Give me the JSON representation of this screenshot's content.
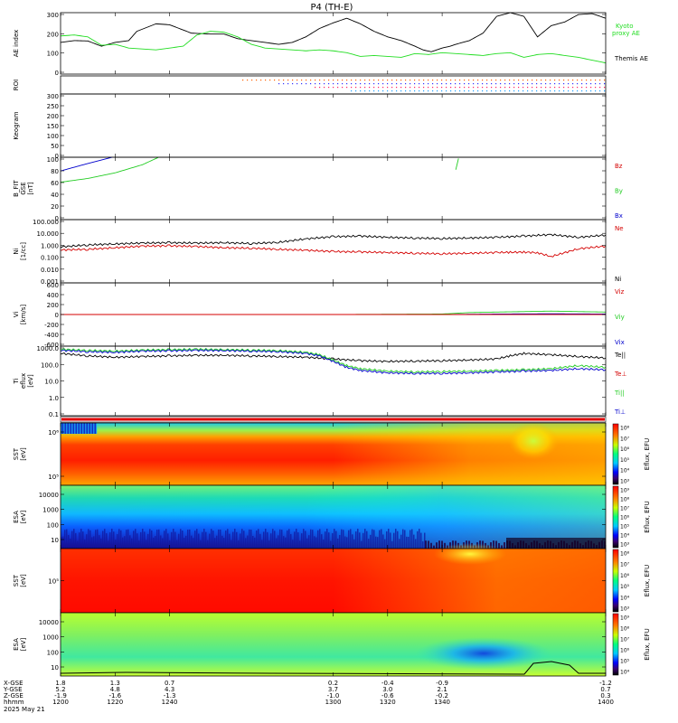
{
  "title": "P4 (TH-E)",
  "colors": {
    "black": "#000000",
    "red": "#d40000",
    "green": "#22cc22",
    "blue": "#0000cc",
    "kyoto": "#22dd22"
  },
  "chart_data": [
    {
      "name": "ae-index-panel",
      "type": "line",
      "ylabel": "AE index",
      "ylim": [
        -30,
        300
      ],
      "yticks": [
        "300",
        "200",
        "100",
        "0"
      ],
      "legend": [
        {
          "text": "Kyoto",
          "color": "#22dd22"
        },
        {
          "text": "proxy AE",
          "color": "#22dd22"
        },
        {
          "text": "Themis AE",
          "color": "#000000"
        }
      ],
      "series": [
        {
          "name": "Themis AE",
          "color": "#000000",
          "x": [
            1200,
            1205,
            1210,
            1215,
            1220,
            1225,
            1228,
            1235,
            1240,
            1248,
            1255,
            1260,
            1265,
            1270,
            1275,
            1280,
            1285,
            1290,
            1295,
            1300,
            1305,
            1310,
            1315,
            1320,
            1325,
            1330,
            1333,
            1336,
            1338,
            1340,
            1343,
            1345,
            1350,
            1355,
            1360,
            1365,
            1370,
            1375,
            1380,
            1385,
            1390,
            1395,
            1400
          ],
          "y": [
            140,
            150,
            148,
            120,
            140,
            150,
            200,
            240,
            235,
            190,
            185,
            185,
            160,
            150,
            140,
            130,
            140,
            170,
            215,
            245,
            270,
            240,
            200,
            170,
            150,
            120,
            100,
            90,
            100,
            110,
            120,
            130,
            150,
            190,
            280,
            300,
            280,
            170,
            230,
            250,
            290,
            295,
            270
          ]
        },
        {
          "name": "Kyoto proxy AE",
          "color": "#22dd22",
          "x": [
            1200,
            1205,
            1210,
            1215,
            1220,
            1225,
            1230,
            1235,
            1240,
            1245,
            1250,
            1255,
            1260,
            1265,
            1270,
            1275,
            1280,
            1285,
            1290,
            1295,
            1300,
            1305,
            1310,
            1315,
            1320,
            1325,
            1330,
            1335,
            1340,
            1345,
            1350,
            1355,
            1360,
            1365,
            1370,
            1375,
            1380,
            1385,
            1390,
            1395,
            1400
          ],
          "y": [
            175,
            180,
            170,
            125,
            130,
            110,
            105,
            100,
            110,
            120,
            180,
            200,
            195,
            170,
            130,
            110,
            105,
            100,
            95,
            100,
            95,
            85,
            65,
            70,
            65,
            60,
            80,
            75,
            85,
            80,
            75,
            70,
            80,
            85,
            60,
            75,
            80,
            70,
            60,
            45,
            30
          ]
        }
      ]
    },
    {
      "name": "roi-panel",
      "type": "scatter",
      "ylabel": "ROI",
      "note_dots": true
    },
    {
      "name": "keogram-panel",
      "type": "heatmap",
      "ylabel": "Keogram",
      "ylim": [
        0,
        300
      ],
      "yticks": [
        "300",
        "250",
        "200",
        "150",
        "100",
        "50",
        "0"
      ]
    },
    {
      "name": "bfit-panel",
      "type": "line",
      "ylabel": "B_FIT",
      "ylabel2": "GSE",
      "ylabel3": "[nT]",
      "ylim": [
        0,
        100
      ],
      "yticks": [
        "100",
        "80",
        "60",
        "40",
        "20",
        "0"
      ],
      "legend": [
        {
          "text": "Bz",
          "color": "#d40000"
        },
        {
          "text": "By",
          "color": "#22cc22"
        },
        {
          "text": "Bx",
          "color": "#0000cc"
        }
      ],
      "series": [
        {
          "name": "Bx",
          "color": "#0000cc",
          "x": [
            1200,
            1210,
            1219
          ],
          "y": [
            78,
            90,
            100
          ]
        },
        {
          "name": "By",
          "color": "#22cc22",
          "x": [
            1200,
            1210,
            1220,
            1230,
            1236
          ],
          "y": [
            60,
            66,
            75,
            88,
            100
          ]
        },
        {
          "name": "By-late",
          "color": "#22cc22",
          "x": [
            1345,
            1346
          ],
          "y": [
            80,
            98
          ]
        }
      ]
    },
    {
      "name": "density-panel",
      "type": "line",
      "ylabel": "Ni",
      "ylabel2": "[1/cc]",
      "scale": "log",
      "ylim": [
        0.001,
        100
      ],
      "yticks": [
        "100.000",
        "10.000",
        "1.000",
        "0.100",
        "0.010",
        "0.001"
      ],
      "legend": [
        {
          "text": "Ne",
          "color": "#d40000"
        },
        {
          "text": "Ni",
          "color": "#000000"
        }
      ],
      "series": [
        {
          "name": "Ni",
          "color": "#000000",
          "x": [
            1200,
            1210,
            1220,
            1230,
            1240,
            1250,
            1260,
            1270,
            1280,
            1290,
            1300,
            1310,
            1320,
            1330,
            1340,
            1350,
            1360,
            1370,
            1380,
            1390,
            1400
          ],
          "y": [
            0.7,
            1.0,
            1.2,
            1.4,
            1.5,
            1.4,
            1.5,
            1.3,
            1.6,
            3.0,
            4.5,
            5.0,
            4.0,
            3.5,
            3.2,
            3.5,
            4.0,
            5.0,
            6.5,
            4.0,
            6.0
          ]
        },
        {
          "name": "Ne",
          "color": "#d40000",
          "x": [
            1200,
            1210,
            1220,
            1230,
            1240,
            1250,
            1260,
            1270,
            1280,
            1290,
            1300,
            1310,
            1320,
            1330,
            1340,
            1350,
            1360,
            1365,
            1370,
            1375,
            1380,
            1390,
            1400
          ],
          "y": [
            0.4,
            0.45,
            0.6,
            0.8,
            0.85,
            0.75,
            0.6,
            0.55,
            0.45,
            0.38,
            0.3,
            0.28,
            0.25,
            0.22,
            0.2,
            0.22,
            0.25,
            0.26,
            0.27,
            0.24,
            0.12,
            0.5,
            0.8
          ]
        }
      ]
    },
    {
      "name": "velocity-panel",
      "type": "line",
      "ylabel": "Vi",
      "ylabel2": "[km/s]",
      "ylim": [
        -650,
        650
      ],
      "yticks": [
        "600",
        "400",
        "200",
        "0",
        "-200",
        "-400",
        "-600"
      ],
      "legend": [
        {
          "text": "Viz",
          "color": "#d40000"
        },
        {
          "text": "Viy",
          "color": "#22cc22"
        },
        {
          "text": "Vix",
          "color": "#0000cc"
        }
      ],
      "series": [
        {
          "name": "Vix",
          "color": "#0000cc",
          "x": [
            1200,
            1340,
            1360,
            1380,
            1400
          ],
          "y": [
            0,
            0,
            10,
            15,
            10
          ]
        },
        {
          "name": "Viy",
          "color": "#22cc22",
          "x": [
            1200,
            1300,
            1340,
            1350,
            1360,
            1370,
            1380,
            1390,
            1400
          ],
          "y": [
            0,
            0,
            10,
            40,
            50,
            60,
            70,
            60,
            50
          ]
        },
        {
          "name": "Viz",
          "color": "#d40000",
          "x": [
            1200,
            1300,
            1400
          ],
          "y": [
            0,
            0,
            0
          ]
        }
      ]
    },
    {
      "name": "temperature-panel",
      "type": "line",
      "ylabel": "Ti",
      "ylabel2": "eflux",
      "ylabel3": "[eV]",
      "scale": "log",
      "ylim": [
        0.05,
        5000
      ],
      "yticks": [
        "1000.0",
        "100.0",
        "10.0",
        "1.0",
        "0.1"
      ],
      "legend": [
        {
          "text": "Te||",
          "color": "#000000"
        },
        {
          "text": "Te⊥",
          "color": "#d40000"
        },
        {
          "text": "Ti||",
          "color": "#22cc22"
        },
        {
          "text": "Ti⊥",
          "color": "#0000cc"
        }
      ],
      "series": [
        {
          "name": "Te||",
          "color": "#000000",
          "x": [
            1200,
            1210,
            1220,
            1230,
            1240,
            1250,
            1260,
            1270,
            1280,
            1290,
            1300,
            1310,
            1320,
            1330,
            1340,
            1350,
            1360,
            1365,
            1370,
            1380,
            1390,
            1400
          ],
          "y": [
            1500,
            1000,
            800,
            900,
            1000,
            1100,
            1100,
            1000,
            900,
            800,
            600,
            450,
            400,
            420,
            450,
            500,
            600,
            1000,
            1500,
            1200,
            900,
            700
          ]
        },
        {
          "name": "Ti||",
          "color": "#22cc22",
          "x": [
            1200,
            1210,
            1220,
            1230,
            1240,
            1250,
            1260,
            1270,
            1280,
            1290,
            1295,
            1300,
            1305,
            1310,
            1320,
            1330,
            1340,
            1350,
            1360,
            1370,
            1380,
            1390,
            1400
          ],
          "y": [
            3000,
            2500,
            2200,
            2600,
            2800,
            3000,
            2800,
            2600,
            2400,
            1800,
            1200,
            500,
            200,
            120,
            80,
            70,
            75,
            80,
            90,
            100,
            120,
            200,
            150
          ]
        },
        {
          "name": "Ti⊥",
          "color": "#0000cc",
          "x": [
            1200,
            1210,
            1220,
            1230,
            1240,
            1250,
            1260,
            1270,
            1280,
            1290,
            1295,
            1300,
            1305,
            1310,
            1320,
            1330,
            1340,
            1350,
            1360,
            1370,
            1380,
            1390,
            1400
          ],
          "y": [
            2500,
            2000,
            1800,
            2200,
            2300,
            2500,
            2400,
            2200,
            2000,
            1500,
            1000,
            400,
            150,
            90,
            60,
            55,
            55,
            60,
            70,
            80,
            90,
            120,
            100
          ]
        }
      ]
    },
    {
      "name": "sst-omni-panel",
      "type": "heatmap",
      "ylabel": "SST",
      "ylabel2": "[eV]",
      "yticks": [
        "10⁶",
        "10⁵"
      ],
      "colorbar": {
        "label": "Eflux, EFU",
        "ticks": [
          "10⁸",
          "10⁷",
          "10⁶",
          "10⁵",
          "10⁴",
          "10³"
        ]
      }
    },
    {
      "name": "esa-omni-panel",
      "type": "heatmap",
      "ylabel": "ESA",
      "ylabel2": "[eV]",
      "yticks": [
        "10000",
        "1000",
        "100",
        "10"
      ],
      "colorbar": {
        "label": "Eflux, EFU",
        "ticks": [
          "10⁹",
          "10⁸",
          "10⁷",
          "10⁶",
          "10⁵",
          "10⁴",
          "10³"
        ]
      }
    },
    {
      "name": "sst-electron-panel",
      "type": "heatmap",
      "ylabel": "SST",
      "ylabel2": "[eV]",
      "yticks": [
        "10⁵"
      ],
      "colorbar": {
        "label": "Eflux, EFU",
        "ticks": [
          "10⁸",
          "10⁷",
          "10⁶",
          "10⁵",
          "10⁴",
          "10³"
        ]
      }
    },
    {
      "name": "esa-electron-panel",
      "type": "heatmap",
      "ylabel": "ESA",
      "ylabel2": "[eV]",
      "yticks": [
        "10000",
        "1000",
        "100",
        "10"
      ],
      "colorbar": {
        "label": "Eflux, EFU",
        "ticks": [
          "10⁹",
          "10⁸",
          "10⁷",
          "10⁶",
          "10⁵",
          "10⁴"
        ]
      }
    }
  ],
  "xaxis": {
    "xlim": [
      1200,
      1400
    ],
    "row_labels": [
      "X-GSE",
      "Y-GSE",
      "Z-GSE",
      "hhmm",
      "2025 May 21"
    ],
    "ticks": [
      {
        "t": 1200,
        "x_gse": "1.8",
        "y_gse": "5.2",
        "z_gse": "-1.9",
        "hhmm": "1200"
      },
      {
        "t": 1220,
        "x_gse": "1.3",
        "y_gse": "4.8",
        "z_gse": "-1.6",
        "hhmm": "1220"
      },
      {
        "t": 1240,
        "x_gse": "0.7",
        "y_gse": "4.3",
        "z_gse": "-1.3",
        "hhmm": "1240"
      },
      {
        "t": 1300,
        "x_gse": "0.2",
        "y_gse": "3.7",
        "z_gse": "-1.0",
        "hhmm": "1300"
      },
      {
        "t": 1320,
        "x_gse": "-0.4",
        "y_gse": "3.0",
        "z_gse": "-0.6",
        "hhmm": "1320"
      },
      {
        "t": 1340,
        "x_gse": "-0.9",
        "y_gse": "2.1",
        "z_gse": "-0.2",
        "hhmm": "1340"
      },
      {
        "t": 1400,
        "x_gse": "-1.2",
        "y_gse": "0.7",
        "z_gse": "0.3",
        "hhmm": "1400"
      }
    ]
  }
}
